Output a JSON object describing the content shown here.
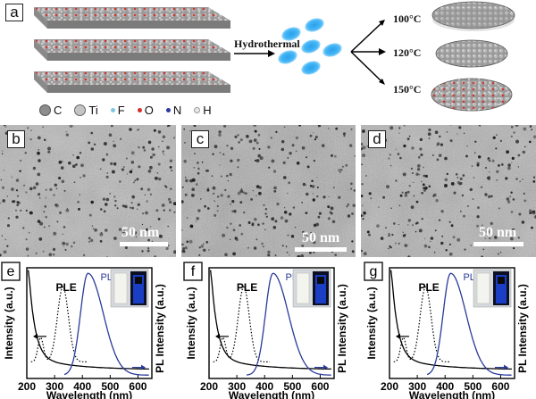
{
  "panel_a": {
    "label": "a",
    "arrow_label": "Hydrothermal",
    "temperatures": [
      "100°C",
      "120°C",
      "150°C"
    ],
    "legend": [
      {
        "symbol": "C",
        "color": "#8c8c8c"
      },
      {
        "symbol": "Ti",
        "color": "#c4c4c4"
      },
      {
        "symbol": "F",
        "color": "#7ec8e3"
      },
      {
        "symbol": "O",
        "color": "#d0312d"
      },
      {
        "symbol": "N",
        "color": "#2b3a9e"
      },
      {
        "symbol": "H",
        "color": "#e8e8e8"
      }
    ]
  },
  "tem_panels": [
    {
      "label": "b",
      "scale": "50 nm"
    },
    {
      "label": "c",
      "scale": "50 nm"
    },
    {
      "label": "d",
      "scale": "50 nm"
    }
  ],
  "spectra_panels": [
    {
      "label": "e",
      "ple_label": "PLE",
      "pl_label": "PL",
      "left_axis": "Intensity (a.u.)",
      "right_axis": "PL Intensity (a.u.)",
      "x_axis": "Wavelength (nm)",
      "ple_peak": 330,
      "pl_peak": 420
    },
    {
      "label": "f",
      "ple_label": "PLE",
      "pl_label": "PL",
      "left_axis": "Intensity (a.u.)",
      "right_axis": "PL Intensity (a.u.)",
      "x_axis": "Wavelength (nm)",
      "ple_peak": 325,
      "pl_peak": 430
    },
    {
      "label": "g",
      "ple_label": "PLE",
      "pl_label": "PL",
      "left_axis": "Intensity (a.u.)",
      "right_axis": "PL Intensity (a.u.)",
      "x_axis": "Wavelength (nm)",
      "ple_peak": 330,
      "pl_peak": 420
    }
  ],
  "x_ticks": [
    "200",
    "300",
    "400",
    "500",
    "600"
  ],
  "colors": {
    "pl_line": "#2a3a9a",
    "absorbance_line": "#000000",
    "ple_line": "#000000",
    "vial_glow": "#1a3fc4"
  }
}
